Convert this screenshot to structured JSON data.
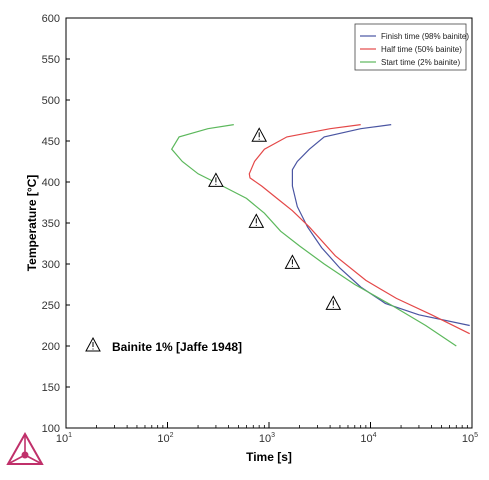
{
  "chart_data": {
    "type": "line",
    "xlabel": "Time [s]",
    "ylabel": "Temperature [°C]",
    "xscale": "log",
    "xlim": [
      10,
      100000
    ],
    "ylim": [
      100,
      600
    ],
    "x_tick_base": "10",
    "x_tick_exponents": [
      "1",
      "2",
      "3",
      "4",
      "5"
    ],
    "y_ticks": [
      "100",
      "150",
      "200",
      "250",
      "300",
      "350",
      "400",
      "450",
      "500",
      "550",
      "600"
    ],
    "grid": false,
    "legend_position": "top-right",
    "series": [
      {
        "name": "Finish time (98% bainite)",
        "color": "#4a55a2",
        "points": [
          [
            16000,
            470
          ],
          [
            8000,
            465
          ],
          [
            3500,
            455
          ],
          [
            2500,
            440
          ],
          [
            1900,
            425
          ],
          [
            1700,
            415
          ],
          [
            1700,
            395
          ],
          [
            1900,
            370
          ],
          [
            2400,
            345
          ],
          [
            3300,
            320
          ],
          [
            5000,
            295
          ],
          [
            8000,
            272
          ],
          [
            14000,
            252
          ],
          [
            30000,
            238
          ],
          [
            95000,
            225
          ]
        ]
      },
      {
        "name": "Half time (50% bainite)",
        "color": "#e44848",
        "points": [
          [
            8000,
            470
          ],
          [
            4000,
            465
          ],
          [
            1500,
            455
          ],
          [
            900,
            440
          ],
          [
            720,
            425
          ],
          [
            640,
            410
          ],
          [
            650,
            405
          ],
          [
            850,
            395
          ],
          [
            1200,
            380
          ],
          [
            1700,
            365
          ],
          [
            2500,
            345
          ],
          [
            4500,
            310
          ],
          [
            9000,
            280
          ],
          [
            18000,
            258
          ],
          [
            40000,
            238
          ],
          [
            95000,
            215
          ]
        ]
      },
      {
        "name": "Start time (2% bainite)",
        "color": "#5cb85c",
        "points": [
          [
            450,
            470
          ],
          [
            250,
            465
          ],
          [
            130,
            455
          ],
          [
            110,
            440
          ],
          [
            140,
            425
          ],
          [
            200,
            410
          ],
          [
            350,
            395
          ],
          [
            600,
            380
          ],
          [
            900,
            362
          ],
          [
            1300,
            340
          ],
          [
            2000,
            322
          ],
          [
            3500,
            300
          ],
          [
            7000,
            275
          ],
          [
            16000,
            250
          ],
          [
            35000,
            225
          ],
          [
            70000,
            200
          ]
        ]
      }
    ],
    "experimental": {
      "label": "Bainite 1% [Jaffe 1948]",
      "points": [
        [
          800,
          457
        ],
        [
          300,
          402
        ],
        [
          750,
          352
        ],
        [
          1700,
          302
        ],
        [
          4300,
          252
        ]
      ]
    }
  }
}
